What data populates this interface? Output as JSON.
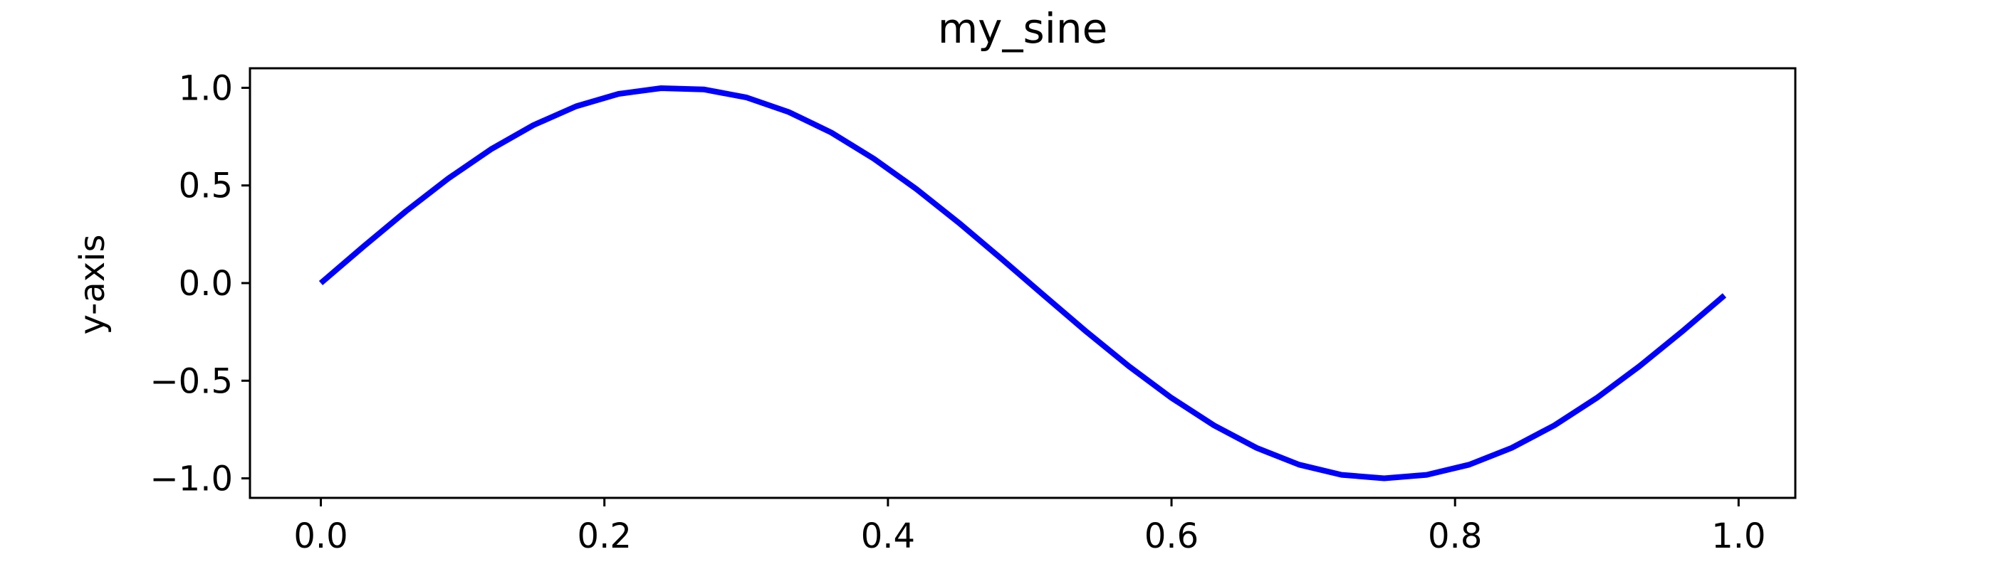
{
  "chart_data": {
    "type": "line",
    "title": "my_sine",
    "xlabel": "",
    "ylabel": "y-axis",
    "xlim": [
      -0.05,
      1.04
    ],
    "ylim": [
      -1.1,
      1.1
    ],
    "xticks": [
      0.0,
      0.2,
      0.4,
      0.6,
      0.8,
      1.0
    ],
    "xtick_labels": [
      "0.0",
      "0.2",
      "0.4",
      "0.6",
      "0.8",
      "1.0"
    ],
    "yticks": [
      1.0,
      0.5,
      0.0,
      -0.5,
      -1.0
    ],
    "ytick_labels": [
      "1.0",
      "0.5",
      "0.0",
      "−0.5",
      "−1.0"
    ],
    "grid": false,
    "series": [
      {
        "color": "#0000ff",
        "x": [
          0.0,
          0.03,
          0.06,
          0.09,
          0.12,
          0.15,
          0.18,
          0.21,
          0.24,
          0.27,
          0.3,
          0.33,
          0.36,
          0.39,
          0.42,
          0.45,
          0.48,
          0.51,
          0.54,
          0.57,
          0.6,
          0.63,
          0.66,
          0.69,
          0.72,
          0.75,
          0.78,
          0.81,
          0.84,
          0.87,
          0.9,
          0.93,
          0.96,
          0.99
        ],
        "y": [
          0.0,
          0.187,
          0.368,
          0.536,
          0.685,
          0.809,
          0.905,
          0.969,
          0.998,
          0.992,
          0.951,
          0.876,
          0.771,
          0.637,
          0.482,
          0.309,
          0.125,
          -0.063,
          -0.249,
          -0.426,
          -0.588,
          -0.729,
          -0.844,
          -0.93,
          -0.982,
          -1.0,
          -0.982,
          -0.93,
          -0.844,
          -0.729,
          -0.588,
          -0.426,
          -0.249,
          -0.063
        ]
      }
    ]
  }
}
